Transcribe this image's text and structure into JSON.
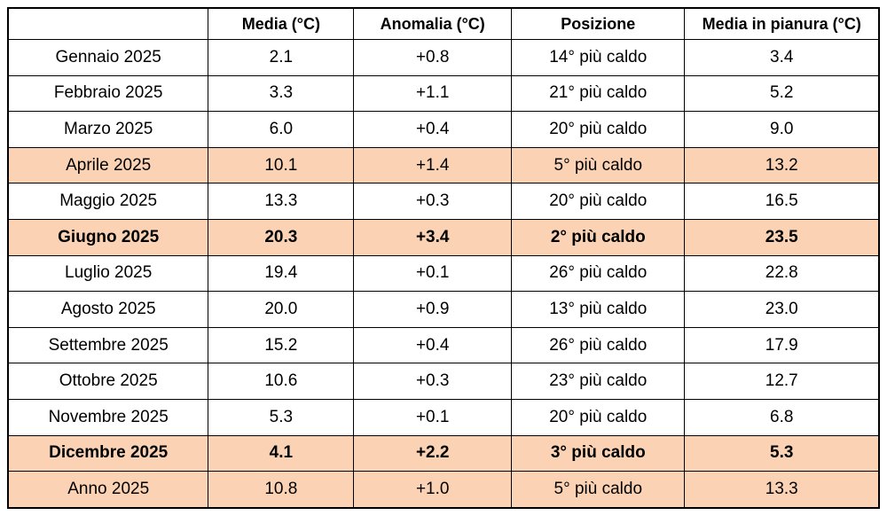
{
  "chart_data": {
    "type": "table",
    "title": "",
    "columns": [
      "",
      "Media (°C)",
      "Anomalia (°C)",
      "Posizione",
      "Media in pianura (°C)"
    ],
    "rows": [
      {
        "label": "Gennaio 2025",
        "media": "2.1",
        "anomalia": "+0.8",
        "posizione": "14° più caldo",
        "pianura": "3.4",
        "highlight": false,
        "bold": false
      },
      {
        "label": "Febbraio 2025",
        "media": "3.3",
        "anomalia": "+1.1",
        "posizione": "21° più caldo",
        "pianura": "5.2",
        "highlight": false,
        "bold": false
      },
      {
        "label": "Marzo 2025",
        "media": "6.0",
        "anomalia": "+0.4",
        "posizione": "20° più caldo",
        "pianura": "9.0",
        "highlight": false,
        "bold": false
      },
      {
        "label": "Aprile 2025",
        "media": "10.1",
        "anomalia": "+1.4",
        "posizione": "5° più caldo",
        "pianura": "13.2",
        "highlight": true,
        "bold": false
      },
      {
        "label": "Maggio 2025",
        "media": "13.3",
        "anomalia": "+0.3",
        "posizione": "20° più caldo",
        "pianura": "16.5",
        "highlight": false,
        "bold": false
      },
      {
        "label": "Giugno 2025",
        "media": "20.3",
        "anomalia": "+3.4",
        "posizione": "2° più caldo",
        "pianura": "23.5",
        "highlight": true,
        "bold": true
      },
      {
        "label": "Luglio 2025",
        "media": "19.4",
        "anomalia": "+0.1",
        "posizione": "26° più caldo",
        "pianura": "22.8",
        "highlight": false,
        "bold": false
      },
      {
        "label": "Agosto 2025",
        "media": "20.0",
        "anomalia": "+0.9",
        "posizione": "13° più caldo",
        "pianura": "23.0",
        "highlight": false,
        "bold": false
      },
      {
        "label": "Settembre 2025",
        "media": "15.2",
        "anomalia": "+0.4",
        "posizione": "26° più caldo",
        "pianura": "17.9",
        "highlight": false,
        "bold": false
      },
      {
        "label": "Ottobre 2025",
        "media": "10.6",
        "anomalia": "+0.3",
        "posizione": "23° più caldo",
        "pianura": "12.7",
        "highlight": false,
        "bold": false
      },
      {
        "label": "Novembre 2025",
        "media": "5.3",
        "anomalia": "+0.1",
        "posizione": "20° più caldo",
        "pianura": "6.8",
        "highlight": false,
        "bold": false
      },
      {
        "label": "Dicembre 2025",
        "media": "4.1",
        "anomalia": "+2.2",
        "posizione": "3° più caldo",
        "pianura": "5.3",
        "highlight": true,
        "bold": true
      },
      {
        "label": "Anno 2025",
        "media": "10.8",
        "anomalia": "+1.0",
        "posizione": "5° più caldo",
        "pianura": "13.3",
        "highlight": true,
        "bold": false
      }
    ],
    "colors": {
      "highlight_bg": "#FBD3B4",
      "border": "#000000",
      "text": "#000000",
      "background": "#FFFFFF"
    },
    "layout": {
      "column_widths_pct": [
        23.0,
        16.7,
        18.1,
        19.9,
        22.3
      ],
      "grid": true,
      "header_bold": true
    }
  }
}
